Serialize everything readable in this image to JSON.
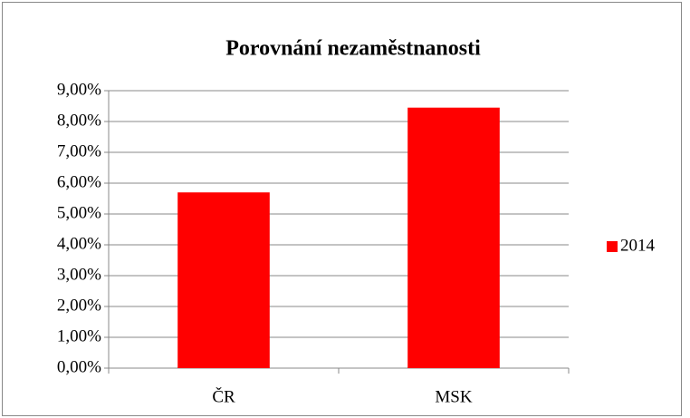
{
  "chart_data": {
    "type": "bar",
    "title": "Porovnání nezaměstnanosti",
    "categories": [
      "ČR",
      "MSK"
    ],
    "series": [
      {
        "name": "2014",
        "color": "#ff0000",
        "values": [
          5.7,
          8.45
        ]
      }
    ],
    "ylim": [
      0,
      9
    ],
    "yticks": [
      {
        "value": 0,
        "label": "0,00%"
      },
      {
        "value": 1,
        "label": "1,00%"
      },
      {
        "value": 2,
        "label": "2,00%"
      },
      {
        "value": 3,
        "label": "3,00%"
      },
      {
        "value": 4,
        "label": "4,00%"
      },
      {
        "value": 5,
        "label": "5,00%"
      },
      {
        "value": 6,
        "label": "6,00%"
      },
      {
        "value": 7,
        "label": "7,00%"
      },
      {
        "value": 8,
        "label": "8,00%"
      },
      {
        "value": 9,
        "label": "9,00%"
      }
    ],
    "grid": true,
    "legend": "right"
  }
}
